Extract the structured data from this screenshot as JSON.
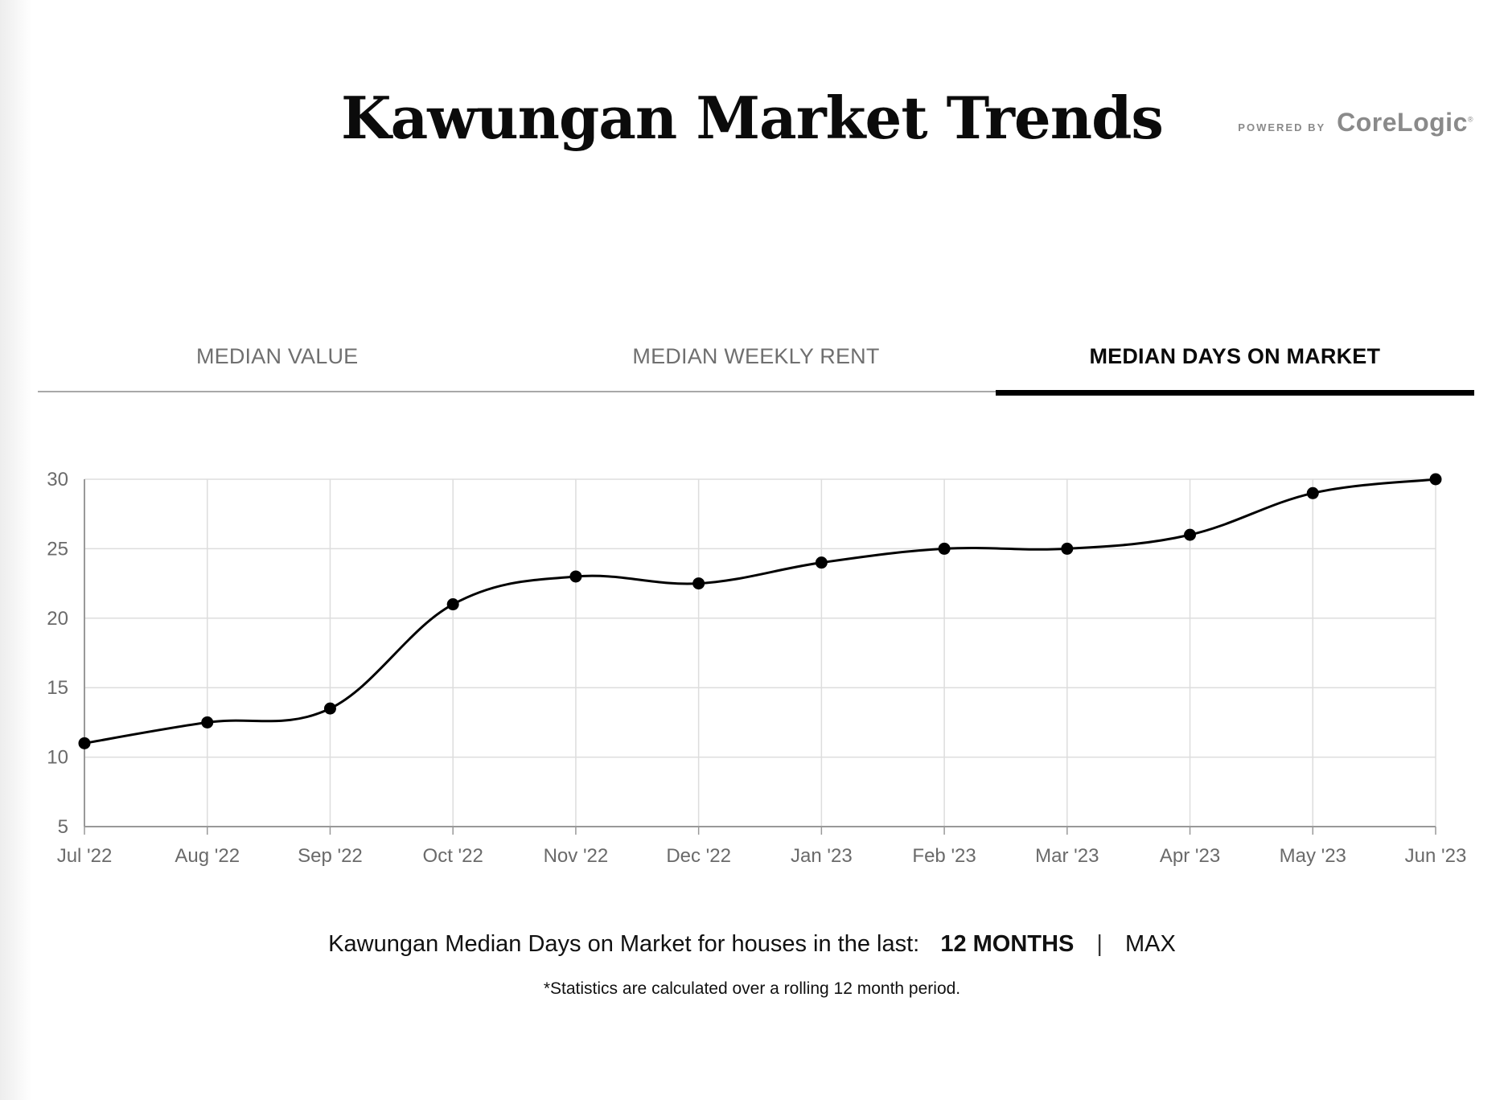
{
  "page": {
    "title": "Kawungan Market Trends"
  },
  "powered_by": {
    "label": "POWERED BY",
    "brand": "CoreLogic",
    "mark": "®"
  },
  "tabs": [
    {
      "label": "MEDIAN VALUE",
      "active": false
    },
    {
      "label": "MEDIAN WEEKLY RENT",
      "active": false
    },
    {
      "label": "MEDIAN DAYS ON MARKET",
      "active": true
    }
  ],
  "summary": {
    "text": "Kawungan Median Days on Market for houses in the last:",
    "period_selected": "12 MONTHS",
    "separator": "|",
    "period_alt": "MAX"
  },
  "footnote": "*Statistics are calculated over a rolling 12 month period.",
  "colors": {
    "line": "#000000",
    "grid": "#dddddd",
    "axis": "#999999",
    "tick_text": "#6a6a6a",
    "active_tab": "#000000",
    "inactive_tab": "#6f6f6f"
  },
  "chart_data": {
    "type": "line",
    "categories": [
      "Jul '22",
      "Aug '22",
      "Sep '22",
      "Oct '22",
      "Nov '22",
      "Dec '22",
      "Jan '23",
      "Feb '23",
      "Mar '23",
      "Apr '23",
      "May '23",
      "Jun '23"
    ],
    "series": [
      {
        "values": [
          11,
          12.5,
          13.5,
          21,
          23,
          22.5,
          24,
          25,
          25,
          26,
          29,
          30
        ]
      }
    ],
    "y_ticks": [
      5,
      10,
      15,
      20,
      25,
      30
    ],
    "ylim": [
      5,
      30
    ],
    "smooth": true,
    "markers": true,
    "grid": true,
    "legend": "none"
  }
}
